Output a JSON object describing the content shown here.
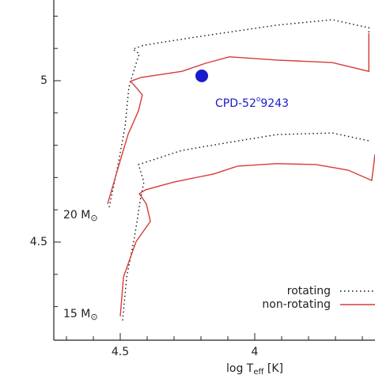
{
  "chart_data": {
    "type": "line",
    "xlabel": [
      "log T",
      "eff",
      " [K]"
    ],
    "xlim": [
      4.747,
      3.553
    ],
    "ylim": [
      4.196,
      5.25
    ],
    "xticks": [
      4.5,
      4
    ],
    "yticks": [
      4.5,
      5
    ],
    "xminorticks": [
      4.7,
      4.6,
      4.4,
      4.3,
      4.2,
      4.1,
      3.9,
      3.8,
      3.7,
      3.6
    ],
    "yminorticks": [
      4.3,
      4.4,
      4.6,
      4.7,
      4.8,
      4.9,
      5.1,
      5.2
    ],
    "legend": "lower right",
    "series": [
      {
        "name": "rotating",
        "color": "#111111",
        "style": "dotted",
        "x": [
          4.541,
          4.512,
          4.482,
          4.468,
          4.441,
          4.429,
          4.453,
          4.412,
          4.182,
          3.918,
          3.712,
          3.576,
          3.576,
          null,
          4.491,
          4.476,
          4.447,
          4.424,
          4.412,
          4.432,
          4.403,
          4.271,
          4.094,
          3.918,
          3.712,
          3.576
        ],
        "y": [
          4.608,
          4.723,
          4.858,
          4.98,
          5.054,
          5.083,
          5.098,
          5.11,
          5.14,
          5.172,
          5.189,
          5.164,
          5.034,
          null,
          4.257,
          4.392,
          4.515,
          4.637,
          4.686,
          4.74,
          4.748,
          4.784,
          4.809,
          4.833,
          4.838,
          4.814
        ]
      },
      {
        "name": "non-rotating",
        "color": "#d93a3a",
        "style": "solid",
        "x": [
          4.547,
          4.506,
          4.471,
          4.432,
          4.418,
          4.447,
          4.462,
          4.423,
          4.271,
          4.183,
          4.094,
          3.918,
          3.712,
          3.576,
          3.576,
          null,
          4.5,
          4.488,
          4.441,
          4.388,
          4.403,
          4.429,
          4.406,
          4.3,
          4.153,
          4.065,
          3.918,
          3.771,
          3.653,
          3.565,
          3.553
        ],
        "y": [
          4.618,
          4.735,
          4.833,
          4.907,
          4.956,
          4.985,
          4.998,
          5.01,
          5.029,
          5.054,
          5.074,
          5.064,
          5.056,
          5.029,
          5.147,
          null,
          4.27,
          4.392,
          4.502,
          4.564,
          4.618,
          4.65,
          4.662,
          4.686,
          4.711,
          4.735,
          4.743,
          4.74,
          4.723,
          4.691,
          4.772
        ]
      }
    ],
    "star": {
      "x": 4.197,
      "y": 5.015,
      "color": "#1a1acc",
      "label": [
        "CPD-52",
        "o",
        "9243"
      ]
    },
    "track_labels": [
      [
        "20 M",
        "⊙"
      ],
      [
        "15 M",
        "⊙"
      ]
    ]
  }
}
